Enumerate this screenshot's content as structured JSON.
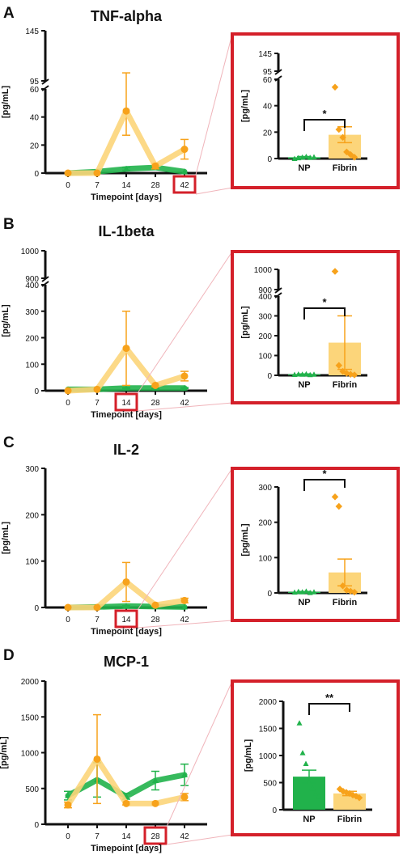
{
  "colors": {
    "np": "#21b24b",
    "fibrin": "#f7a21b",
    "fibrin_light": "#fcd57a",
    "highlight": "#d4202a",
    "axis": "#111111",
    "connector": "#f0b4ba"
  },
  "panels": [
    {
      "letter": "A",
      "title": "TNF-alpha"
    },
    {
      "letter": "B",
      "title": "IL-1beta"
    },
    {
      "letter": "C",
      "title": "IL-2"
    },
    {
      "letter": "D",
      "title": "MCP-1"
    }
  ],
  "chart_data": [
    {
      "panel": "A",
      "type": "line",
      "title": "TNF-alpha",
      "xlabel": "Timepoint [days]",
      "ylabel": "[pg/mL]",
      "x": [
        0,
        7,
        14,
        28,
        42
      ],
      "highlight_x": 42,
      "ylim_lower": [
        0,
        60
      ],
      "ylim_upper": [
        95,
        145
      ],
      "axis_break": true,
      "yticks": [
        0,
        20,
        40,
        60,
        95,
        145
      ],
      "series": [
        {
          "name": "NP",
          "values": [
            0,
            1,
            3,
            4,
            1
          ],
          "err": [
            0,
            0,
            1,
            1,
            0
          ]
        },
        {
          "name": "Fibrin",
          "values": [
            0,
            0,
            65,
            5,
            17
          ],
          "err": [
            0,
            0,
            38,
            2,
            7
          ]
        }
      ]
    },
    {
      "panel": "A-inset",
      "type": "bar",
      "ylabel": "[pg/mL]",
      "categories": [
        "NP",
        "Fibrin"
      ],
      "ylim_lower": [
        0,
        60
      ],
      "ylim_upper": [
        95,
        145
      ],
      "axis_break": true,
      "yticks": [
        0,
        20,
        40,
        60,
        95,
        145
      ],
      "values": [
        1,
        18
      ],
      "err": [
        0.5,
        6
      ],
      "points": [
        [
          0,
          0.5,
          1,
          1.5,
          0.8,
          1.2
        ],
        [
          54,
          22,
          16,
          5,
          3,
          1
        ]
      ],
      "significance": "*"
    },
    {
      "panel": "B",
      "type": "line",
      "title": "IL-1beta",
      "xlabel": "Timepoint [days]",
      "ylabel": "[pg/mL]",
      "x": [
        0,
        7,
        14,
        28,
        42
      ],
      "highlight_x": 14,
      "ylim_lower": [
        0,
        400
      ],
      "ylim_upper": [
        900,
        1000
      ],
      "axis_break": true,
      "yticks": [
        0,
        100,
        200,
        300,
        400,
        900,
        1000
      ],
      "series": [
        {
          "name": "NP",
          "values": [
            5,
            5,
            10,
            10,
            10
          ],
          "err": [
            0,
            0,
            2,
            2,
            2
          ]
        },
        {
          "name": "Fibrin",
          "values": [
            0,
            5,
            160,
            20,
            55
          ],
          "err": [
            0,
            0,
            140,
            5,
            18
          ]
        }
      ]
    },
    {
      "panel": "B-inset",
      "type": "bar",
      "ylabel": "[pg/mL]",
      "categories": [
        "NP",
        "Fibrin"
      ],
      "ylim_lower": [
        0,
        400
      ],
      "ylim_upper": [
        900,
        1000
      ],
      "axis_break": true,
      "yticks": [
        0,
        100,
        200,
        300,
        400,
        900,
        1000
      ],
      "values": [
        5,
        165
      ],
      "err": [
        2,
        135
      ],
      "points": [
        [
          4,
          6,
          5,
          7,
          3,
          5
        ],
        [
          990,
          50,
          20,
          10,
          5,
          2
        ]
      ],
      "significance": "*"
    },
    {
      "panel": "C",
      "type": "line",
      "title": "IL-2",
      "xlabel": "Timepoint [days]",
      "ylabel": "[pg/mL]",
      "x": [
        0,
        7,
        14,
        28,
        42
      ],
      "highlight_x": 14,
      "ylim": [
        0,
        300
      ],
      "yticks": [
        0,
        100,
        200,
        300
      ],
      "series": [
        {
          "name": "NP",
          "values": [
            0,
            1,
            3,
            2,
            1
          ],
          "err": [
            0,
            0,
            1,
            1,
            0
          ]
        },
        {
          "name": "Fibrin",
          "values": [
            0,
            0,
            55,
            5,
            15
          ],
          "err": [
            0,
            0,
            42,
            2,
            5
          ]
        }
      ]
    },
    {
      "panel": "C-inset",
      "type": "bar",
      "ylabel": "[pg/mL]",
      "categories": [
        "NP",
        "Fibrin"
      ],
      "ylim": [
        0,
        300
      ],
      "yticks": [
        0,
        100,
        200,
        300
      ],
      "values": [
        3,
        58
      ],
      "err": [
        1,
        38
      ],
      "points": [
        [
          2,
          4,
          3,
          5,
          1,
          3
        ],
        [
          272,
          245,
          20,
          8,
          5,
          2
        ]
      ],
      "significance": "*"
    },
    {
      "panel": "D",
      "type": "line",
      "title": "MCP-1",
      "xlabel": "Timepoint [days]",
      "ylabel": "[pg/mL]",
      "x": [
        0,
        7,
        14,
        28,
        42
      ],
      "highlight_x": 28,
      "ylim": [
        0,
        2000
      ],
      "yticks": [
        0,
        500,
        1000,
        1500,
        2000
      ],
      "series": [
        {
          "name": "NP",
          "values": [
            400,
            620,
            390,
            610,
            690
          ],
          "err": [
            60,
            240,
            40,
            130,
            150
          ]
        },
        {
          "name": "Fibrin",
          "values": [
            270,
            910,
            290,
            290,
            380
          ],
          "err": [
            40,
            620,
            20,
            20,
            50
          ]
        }
      ]
    },
    {
      "panel": "D-inset",
      "type": "bar",
      "ylabel": "[pg/mL]",
      "categories": [
        "NP",
        "Fibrin"
      ],
      "ylim": [
        0,
        2000
      ],
      "yticks": [
        0,
        500,
        1000,
        1500,
        2000
      ],
      "values": [
        610,
        300
      ],
      "err": [
        120,
        40
      ],
      "points": [
        [
          1600,
          1050,
          850,
          500,
          400,
          300,
          250
        ],
        [
          380,
          340,
          320,
          300,
          270,
          250,
          220
        ]
      ],
      "significance": "**"
    }
  ]
}
